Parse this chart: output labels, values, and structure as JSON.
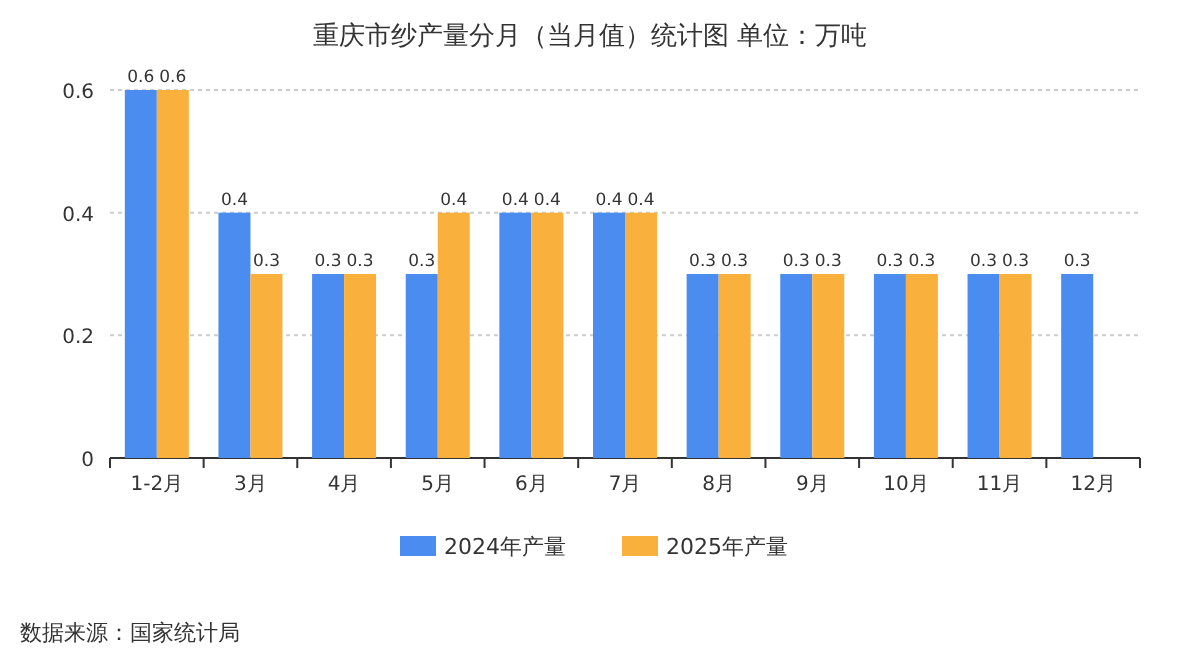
{
  "chart_data": {
    "type": "bar",
    "title": "重庆市纱产量分月（当月值）统计图  单位：万吨",
    "categories": [
      "1-2月",
      "3月",
      "4月",
      "5月",
      "6月",
      "7月",
      "8月",
      "9月",
      "10月",
      "11月",
      "12月"
    ],
    "series": [
      {
        "name": "2024年产量",
        "color": "#4a8cf0",
        "values": [
          0.6,
          0.4,
          0.3,
          0.3,
          0.4,
          0.4,
          0.3,
          0.3,
          0.3,
          0.3,
          0.3
        ]
      },
      {
        "name": "2025年产量",
        "color": "#f9b03c",
        "values": [
          0.6,
          0.3,
          0.3,
          0.4,
          0.4,
          0.4,
          0.3,
          0.3,
          0.3,
          0.3,
          null
        ]
      }
    ],
    "ylim": [
      0,
      0.6
    ],
    "yticks": [
      0,
      0.2,
      0.4,
      0.6
    ],
    "grid": "y",
    "legend": "bottom",
    "data_labels": true,
    "annotations": [
      "数据来源：国家统计局"
    ]
  }
}
